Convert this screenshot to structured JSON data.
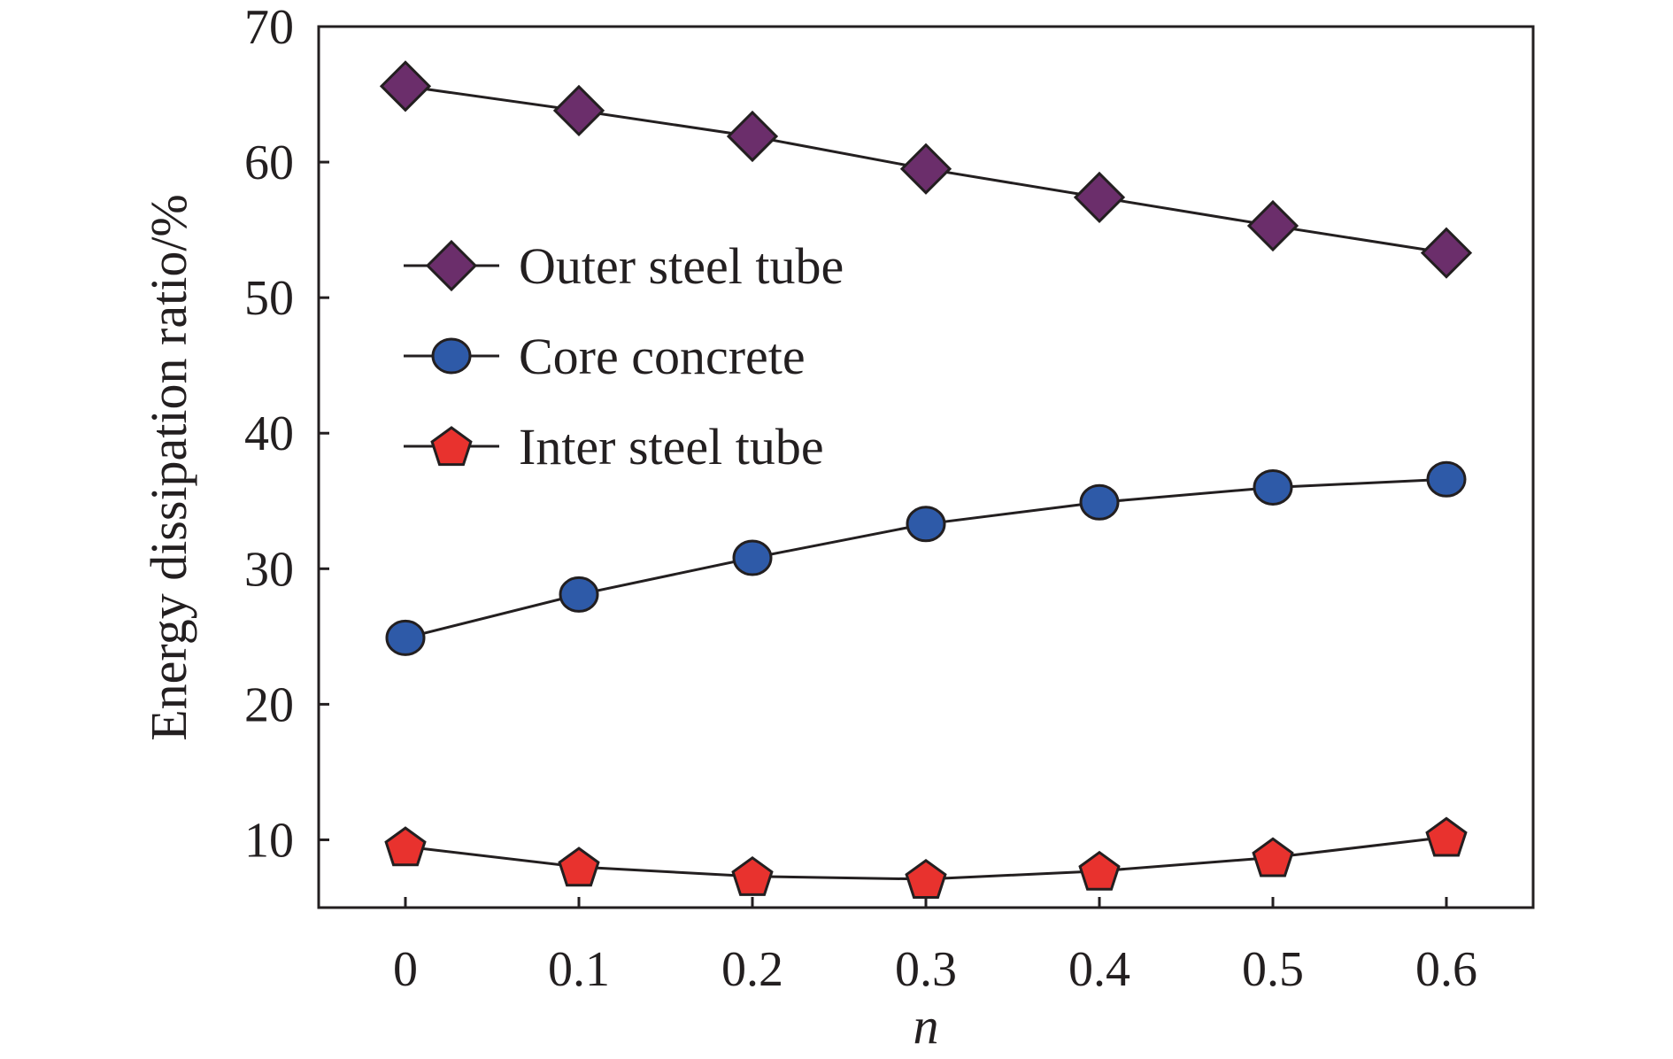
{
  "chart_data": {
    "type": "line",
    "title": "",
    "xlabel": "n",
    "ylabel": "Energy dissipation ratio/%",
    "x": [
      0,
      0.1,
      0.2,
      0.3,
      0.4,
      0.5,
      0.6
    ],
    "x_tick_labels": [
      "0",
      "0.1",
      "0.2",
      "0.3",
      "0.4",
      "0.5",
      "0.6"
    ],
    "y_ticks": [
      10,
      20,
      30,
      40,
      50,
      60,
      70
    ],
    "xlim": [
      -0.05,
      0.65
    ],
    "ylim": [
      5,
      70
    ],
    "grid": false,
    "legend_position": "upper-left",
    "series": [
      {
        "name": "Outer steel tube",
        "marker": "diamond",
        "color": "#6b2e6b",
        "values": [
          65.6,
          63.8,
          61.9,
          59.5,
          57.4,
          55.3,
          53.3
        ]
      },
      {
        "name": "Core concrete",
        "marker": "circle",
        "color": "#2e5aa8",
        "values": [
          24.9,
          28.1,
          30.8,
          33.3,
          34.9,
          36.0,
          36.6
        ]
      },
      {
        "name": "Inter steel tube",
        "marker": "pentagon",
        "color": "#e8322e",
        "values": [
          9.5,
          8.0,
          7.3,
          7.1,
          7.7,
          8.7,
          10.2
        ]
      }
    ]
  }
}
